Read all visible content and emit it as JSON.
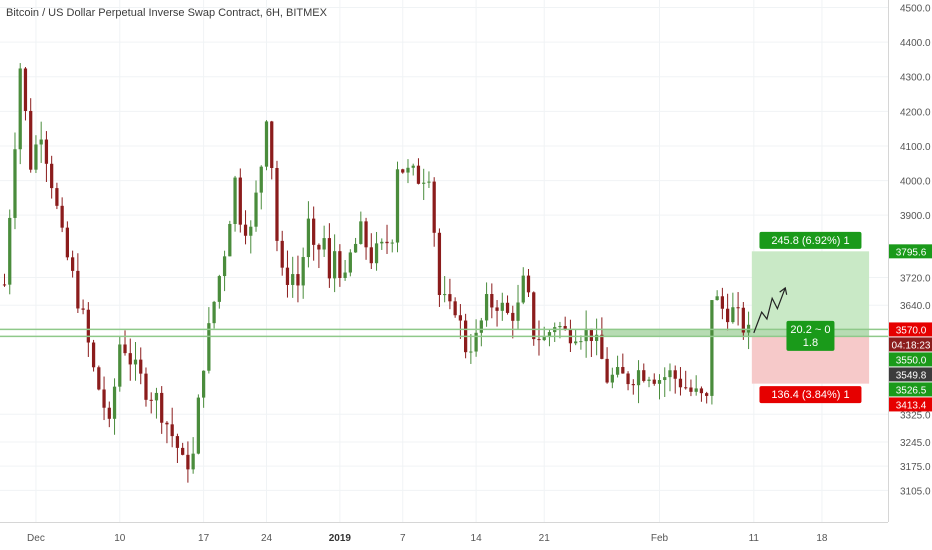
{
  "header": {
    "title": "Bitcoin / US Dollar Perpetual Inverse Swap Contract, 6H, BITMEX"
  },
  "colors": {
    "up": "#4a8c3c",
    "down": "#8b1c1c",
    "grid": "#f0f3f5",
    "axis_text": "#555555",
    "support_line": "#8fc98a",
    "profit_zone": "#c9e9c6",
    "loss_zone": "#f6c9c9",
    "entry_zone": "#9fd09a",
    "green_badge": "#1a9a1a",
    "red_badge": "#e60000",
    "dark_badge": "#3c3c3c",
    "countdown_badge": "#8b1c1c"
  },
  "chart_data": {
    "type": "candlestick",
    "interval": "6H",
    "exchange": "BITMEX",
    "ylim": [
      3060,
      4510
    ],
    "y_ticks": [
      3105.0,
      3175.0,
      3245.0,
      3325.0,
      3413.4,
      3526.5,
      3550.0,
      3640.0,
      3720.0,
      3795.6,
      3900.0,
      4000.0,
      4100.0,
      4200.0,
      4300.0,
      4400.0,
      4500.0
    ],
    "x_ticks": [
      {
        "label": "Dec",
        "idx": 6
      },
      {
        "label": "10",
        "idx": 22
      },
      {
        "label": "17",
        "idx": 38
      },
      {
        "label": "24",
        "idx": 50
      },
      {
        "label": "2019",
        "idx": 64
      },
      {
        "label": "7",
        "idx": 76
      },
      {
        "label": "14",
        "idx": 90
      },
      {
        "label": "21",
        "idx": 103
      },
      {
        "label": "Feb",
        "idx": 125
      },
      {
        "label": "11",
        "idx": 143
      },
      {
        "label": "18",
        "idx": 156
      }
    ],
    "candle_path": [
      [
        0,
        3700
      ],
      [
        3,
        4330
      ],
      [
        5,
        4050
      ],
      [
        7,
        4150
      ],
      [
        9,
        4000
      ],
      [
        11,
        3830
      ],
      [
        13,
        3720
      ],
      [
        15,
        3600
      ],
      [
        17,
        3450
      ],
      [
        19,
        3350
      ],
      [
        20,
        3280
      ],
      [
        22,
        3530
      ],
      [
        23,
        3520
      ],
      [
        25,
        3450
      ],
      [
        27,
        3400
      ],
      [
        29,
        3370
      ],
      [
        31,
        3300
      ],
      [
        33,
        3230
      ],
      [
        34,
        3180
      ],
      [
        36,
        3200
      ],
      [
        37,
        3350
      ],
      [
        38,
        3480
      ],
      [
        40,
        3650
      ],
      [
        42,
        3800
      ],
      [
        44,
        4000
      ],
      [
        45,
        3900
      ],
      [
        47,
        3850
      ],
      [
        49,
        4050
      ],
      [
        50,
        4200
      ],
      [
        51,
        4050
      ],
      [
        52,
        3830
      ],
      [
        53,
        3720
      ],
      [
        55,
        3730
      ],
      [
        56,
        3700
      ],
      [
        58,
        3870
      ],
      [
        59,
        3780
      ],
      [
        61,
        3830
      ],
      [
        62,
        3700
      ],
      [
        63,
        3800
      ],
      [
        65,
        3700
      ],
      [
        66,
        3780
      ],
      [
        68,
        3850
      ],
      [
        70,
        3780
      ],
      [
        72,
        3800
      ],
      [
        74,
        3850
      ],
      [
        75,
        4050
      ],
      [
        77,
        4020
      ],
      [
        79,
        4010
      ],
      [
        81,
        4030
      ],
      [
        82,
        3860
      ],
      [
        83,
        3670
      ],
      [
        85,
        3620
      ],
      [
        86,
        3640
      ],
      [
        88,
        3520
      ],
      [
        90,
        3540
      ],
      [
        92,
        3640
      ],
      [
        94,
        3650
      ],
      [
        96,
        3610
      ],
      [
        98,
        3630
      ],
      [
        99,
        3700
      ],
      [
        100,
        3650
      ],
      [
        101,
        3560
      ],
      [
        103,
        3540
      ],
      [
        105,
        3590
      ],
      [
        107,
        3560
      ],
      [
        109,
        3570
      ],
      [
        111,
        3560
      ],
      [
        112,
        3560
      ],
      [
        114,
        3480
      ],
      [
        115,
        3430
      ],
      [
        117,
        3430
      ],
      [
        119,
        3430
      ],
      [
        121,
        3450
      ],
      [
        123,
        3450
      ],
      [
        125,
        3430
      ],
      [
        127,
        3440
      ],
      [
        129,
        3420
      ],
      [
        131,
        3390
      ],
      [
        133,
        3370
      ],
      [
        134,
        3360
      ],
      [
        135,
        3670
      ],
      [
        137,
        3630
      ],
      [
        139,
        3620
      ],
      [
        141,
        3580
      ],
      [
        142,
        3555
      ]
    ],
    "candles": {
      "start_time": "2018-11-28",
      "count": 143,
      "open_first": 3700
    },
    "projection": {
      "path": [
        [
          143,
          3560
        ],
        [
          144.5,
          3620
        ],
        [
          145.5,
          3600
        ],
        [
          146.5,
          3660
        ],
        [
          147.5,
          3630
        ],
        [
          149,
          3690
        ]
      ]
    },
    "levels": {
      "support_upper": 3570.0,
      "support_lower": 3549.8
    },
    "position": {
      "from_idx": 143,
      "to_idx": 165,
      "entry_low": 3549.8,
      "entry_high": 3570.0,
      "target": 3795.6,
      "stop": 3413.4,
      "target_label": "245.8 (6.92%) 1",
      "stop_label": "136.4 (3.84%) 1",
      "risk_reward_label_line1": "20.2 ~ 0",
      "risk_reward_label_line2": "1.8"
    },
    "axis_badges": [
      {
        "value": 3795.6,
        "label": "3795.6",
        "color": "#1a9a1a"
      },
      {
        "value": 3570.0,
        "label": "3570.0",
        "color": "#e60000"
      },
      {
        "value": 3556.0,
        "label": "04:18:23",
        "color": "#8b1c1c"
      },
      {
        "value": 3550.0,
        "label": "3550.0",
        "color": "#1a9a1a"
      },
      {
        "value": 3549.8,
        "label": "3549.8",
        "color": "#3c3c3c"
      },
      {
        "value": 3526.5,
        "label": "3526.5",
        "color": "#1a9a1a"
      },
      {
        "value": 3413.4,
        "label": "3413.4",
        "color": "#e60000"
      }
    ]
  }
}
